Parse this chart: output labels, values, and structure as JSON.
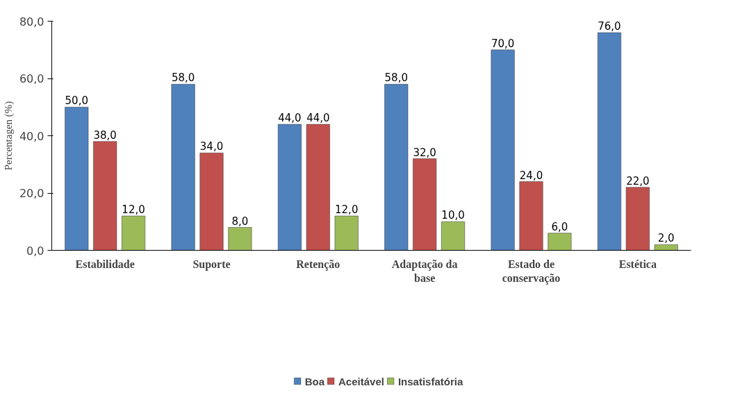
{
  "chart_data": {
    "type": "bar",
    "ylabel": "Percentagen (%)",
    "categories": [
      "Estabilidade",
      "Suporte",
      "Retenção",
      "Adaptação da base",
      "Estado de conservação",
      "Estética"
    ],
    "series": [
      {
        "name": "Boa",
        "color": "#4f81bd",
        "values": [
          50,
          58,
          44,
          58,
          70,
          76
        ],
        "value_labels": [
          "50,0",
          "58,0",
          "44,0",
          "58,0",
          "70,0",
          "76,0"
        ]
      },
      {
        "name": "Aceitável",
        "color": "#c0504d",
        "values": [
          38,
          34,
          44,
          32,
          24,
          22
        ],
        "value_labels": [
          "38,0",
          "34,0",
          "44,0",
          "32,0",
          "24,0",
          "22,0"
        ]
      },
      {
        "name": "Insatisfatória",
        "color": "#9bbb59",
        "values": [
          12,
          8,
          12,
          10,
          6,
          2
        ],
        "value_labels": [
          "12,0",
          "8,0",
          "12,0",
          "10,0",
          "6,0",
          "2,0"
        ]
      }
    ],
    "ylim": [
      0,
      80
    ],
    "yticks": [
      {
        "value": 0,
        "label": "0,0"
      },
      {
        "value": 20,
        "label": "20,0"
      },
      {
        "value": 40,
        "label": "40,0"
      },
      {
        "value": 60,
        "label": "60,0"
      },
      {
        "value": 80,
        "label": "80,0"
      }
    ],
    "grid": false,
    "legend": "bottom"
  }
}
